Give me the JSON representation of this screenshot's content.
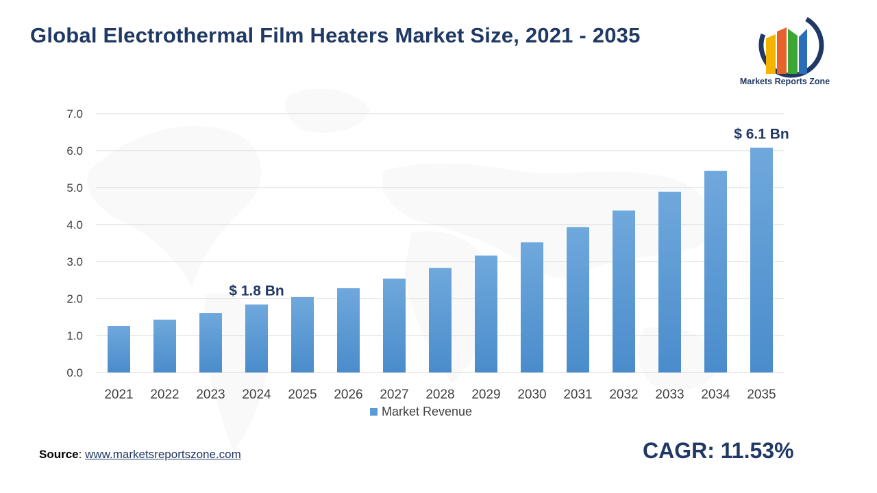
{
  "title": "Global Electrothermal Film Heaters Market Size, 2021 - 2035",
  "logo": {
    "name": "Markets Reports Zone"
  },
  "source": {
    "label": "Source",
    "separator": ": ",
    "link_text": "www.marketsreportszone.com"
  },
  "cagr": "CAGR: 11.53%",
  "colors": {
    "bar": "#5b9bd5",
    "title": "#1f3864",
    "grid": "#d9d9d9",
    "axis_text": "#404040"
  },
  "chart_data": {
    "type": "bar",
    "title": "Global Electrothermal Film Heaters Market Size, 2021 - 2035",
    "categories": [
      "2021",
      "2022",
      "2023",
      "2024",
      "2025",
      "2026",
      "2027",
      "2028",
      "2029",
      "2030",
      "2031",
      "2032",
      "2033",
      "2034",
      "2035"
    ],
    "series": [
      {
        "name": "Market Revenue",
        "values": [
          1.26,
          1.43,
          1.61,
          1.84,
          2.04,
          2.28,
          2.54,
          2.83,
          3.16,
          3.52,
          3.93,
          4.38,
          4.89,
          5.45,
          6.08
        ]
      }
    ],
    "ylim": [
      0,
      7
    ],
    "yticks": [
      "0.0",
      "1.0",
      "2.0",
      "3.0",
      "4.0",
      "5.0",
      "6.0",
      "7.0"
    ],
    "grid": true,
    "legend": "bottom",
    "annotations": [
      {
        "category": "2024",
        "text": "$ 1.8 Bn"
      },
      {
        "category": "2035",
        "text": "$ 6.1 Bn"
      }
    ]
  }
}
